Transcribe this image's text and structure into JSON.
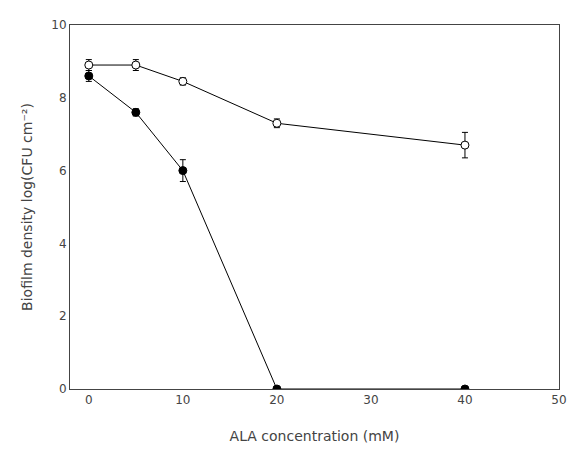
{
  "chart_data": {
    "type": "line",
    "xlabel": "ALA concentration (mM)",
    "ylabel": "Biofilm density log(CFU cm⁻²)",
    "x": [
      0,
      5,
      10,
      20,
      40
    ],
    "series": [
      {
        "values": [
          8.9,
          8.9,
          8.45,
          7.3,
          6.7
        ],
        "yerr": [
          0.15,
          0.15,
          0.1,
          0.12,
          0.35
        ],
        "color": "#000000",
        "marker": "open_circle",
        "line_style": "solid"
      },
      {
        "values": [
          8.6,
          7.6,
          6.0,
          0.0,
          0.0
        ],
        "yerr": [
          0.15,
          0.1,
          0.3,
          0.0,
          0.0
        ],
        "color": "#000000",
        "marker": "circle",
        "line_style": "solid"
      }
    ],
    "xlim": [
      -2,
      50
    ],
    "ylim": [
      0,
      10
    ],
    "xticks": [
      0,
      10,
      20,
      30,
      40,
      50
    ],
    "yticks": [
      0,
      2,
      4,
      6,
      8,
      10
    ],
    "grid": false
  }
}
